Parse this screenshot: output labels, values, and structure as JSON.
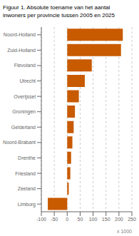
{
  "chart_data": {
    "type": "bar",
    "orientation": "horizontal",
    "title": "Figuur 1. Absolute toename van het aantal\ninwoners per provincie tussen 2005 en 2025",
    "categories": [
      "Noord-Holland",
      "Zuid-Holland",
      "Flevoland",
      "Utrecht",
      "Overijssel",
      "Groningen",
      "Gelderland",
      "Noord-Brabant",
      "Drenthe",
      "Friesland",
      "Zeeland",
      "Limburg"
    ],
    "values": [
      215,
      208,
      95,
      68,
      45,
      30,
      25,
      20,
      15,
      12,
      6,
      -75
    ],
    "color": "#C85A00",
    "xlim": [
      -100,
      250
    ],
    "xticks": [
      -100,
      -50,
      0,
      50,
      100,
      150,
      200,
      250
    ],
    "xlabel": "x 1000",
    "grid": true
  }
}
